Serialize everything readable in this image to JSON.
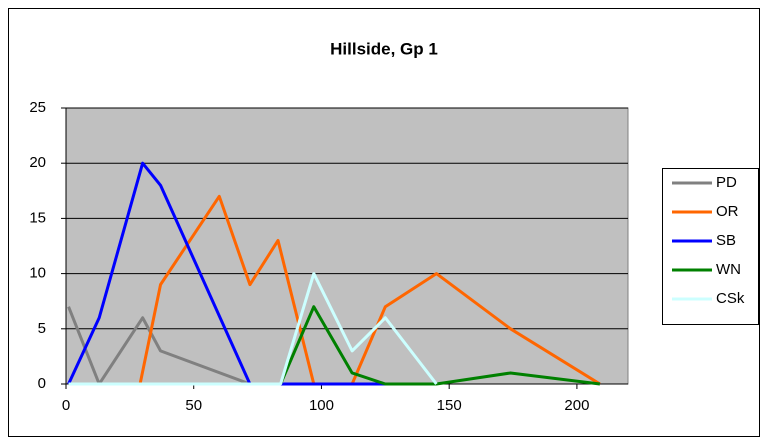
{
  "chart_data": {
    "type": "line",
    "title": "Hillside, Gp 1",
    "xlim": [
      0,
      220
    ],
    "xticks": [
      0,
      50,
      100,
      150,
      200
    ],
    "ylim": [
      0,
      25
    ],
    "yticks": [
      0,
      5,
      10,
      15,
      20,
      25
    ],
    "grid": true,
    "legend": "right",
    "series": [
      {
        "name": "PD",
        "color": "#808080",
        "x": [
          1,
          13,
          30,
          37,
          72
        ],
        "values": [
          7,
          0,
          6,
          3,
          0
        ]
      },
      {
        "name": "OR",
        "color": "#ff6600",
        "x": [
          1,
          29,
          37,
          60,
          72,
          83,
          97,
          112,
          125,
          145,
          174,
          209
        ],
        "values": [
          0,
          0,
          9,
          17,
          9,
          13,
          0,
          0,
          7,
          10,
          5,
          0
        ]
      },
      {
        "name": "SB",
        "color": "#0000ff",
        "x": [
          1,
          13,
          30,
          37,
          72,
          84,
          125
        ],
        "values": [
          0,
          6,
          20,
          18,
          0,
          0,
          0
        ]
      },
      {
        "name": "WN",
        "color": "#008000",
        "x": [
          84,
          97,
          112,
          125,
          145,
          174,
          209
        ],
        "values": [
          0,
          7,
          1,
          0,
          0,
          1,
          0
        ]
      },
      {
        "name": "CSk",
        "color": "#ccffff",
        "x": [
          1,
          84,
          97,
          112,
          125,
          145
        ],
        "values": [
          0,
          0,
          10,
          3,
          6,
          0
        ]
      }
    ]
  }
}
